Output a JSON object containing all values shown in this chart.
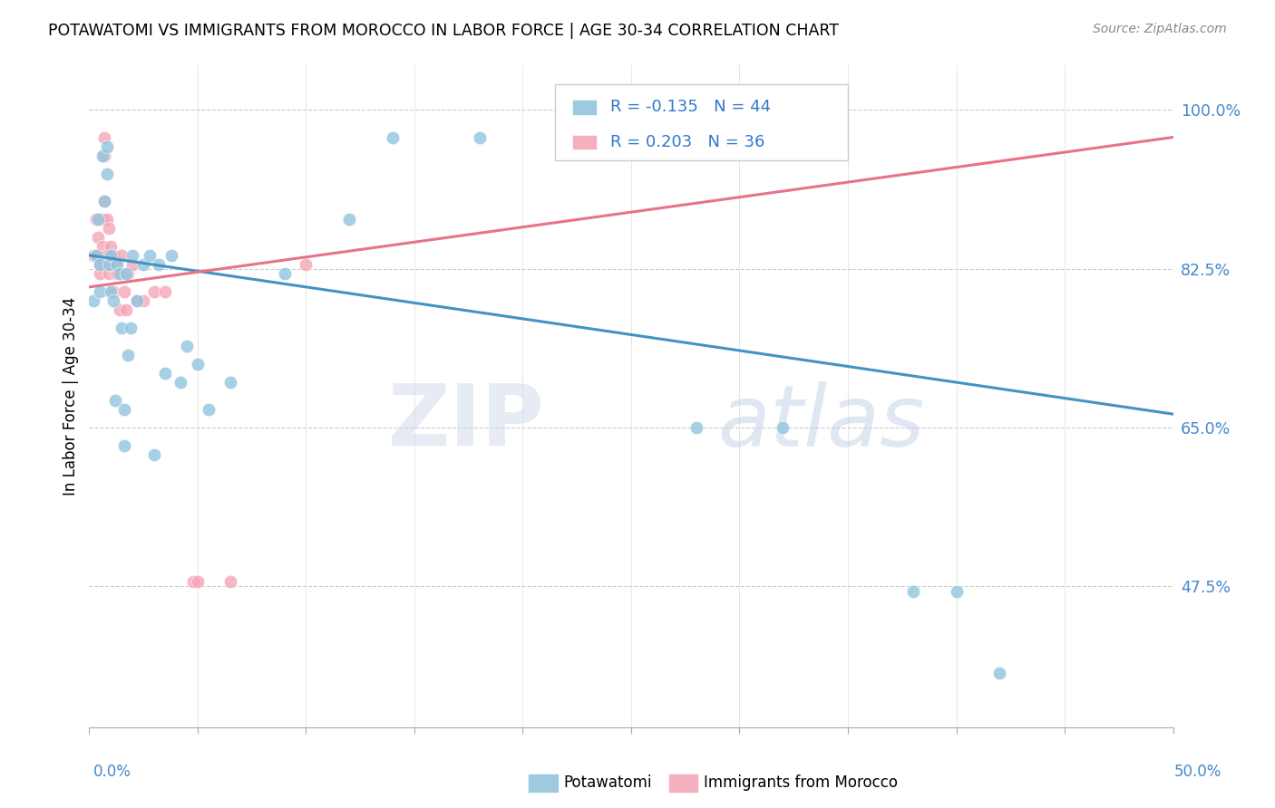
{
  "title": "POTAWATOMI VS IMMIGRANTS FROM MOROCCO IN LABOR FORCE | AGE 30-34 CORRELATION CHART",
  "source": "Source: ZipAtlas.com",
  "ylabel": "In Labor Force | Age 30-34",
  "ytick_labels": [
    "100.0%",
    "82.5%",
    "65.0%",
    "47.5%"
  ],
  "ytick_values": [
    1.0,
    0.825,
    0.65,
    0.475
  ],
  "xlim": [
    0.0,
    0.5
  ],
  "ylim": [
    0.32,
    1.05
  ],
  "legend_blue_r": "-0.135",
  "legend_blue_n": "44",
  "legend_pink_r": "0.203",
  "legend_pink_n": "36",
  "blue_color": "#92c5de",
  "pink_color": "#f4a6b8",
  "blue_line_color": "#4393c3",
  "pink_line_color": "#e8728a",
  "watermark_zip": "ZIP",
  "watermark_atlas": "atlas",
  "blue_x": [
    0.002,
    0.003,
    0.004,
    0.005,
    0.005,
    0.006,
    0.007,
    0.008,
    0.008,
    0.009,
    0.01,
    0.01,
    0.011,
    0.012,
    0.013,
    0.014,
    0.015,
    0.016,
    0.016,
    0.017,
    0.018,
    0.019,
    0.02,
    0.022,
    0.025,
    0.028,
    0.03,
    0.032,
    0.035,
    0.038,
    0.042,
    0.045,
    0.05,
    0.055,
    0.065,
    0.09,
    0.12,
    0.14,
    0.18,
    0.28,
    0.32,
    0.38,
    0.4,
    0.42
  ],
  "blue_y": [
    0.79,
    0.84,
    0.88,
    0.83,
    0.8,
    0.95,
    0.9,
    0.96,
    0.93,
    0.83,
    0.84,
    0.8,
    0.79,
    0.68,
    0.83,
    0.82,
    0.76,
    0.67,
    0.63,
    0.82,
    0.73,
    0.76,
    0.84,
    0.79,
    0.83,
    0.84,
    0.62,
    0.83,
    0.71,
    0.84,
    0.7,
    0.74,
    0.72,
    0.67,
    0.7,
    0.82,
    0.88,
    0.97,
    0.97,
    0.65,
    0.65,
    0.47,
    0.47,
    0.38
  ],
  "pink_x": [
    0.002,
    0.003,
    0.003,
    0.004,
    0.005,
    0.005,
    0.006,
    0.006,
    0.007,
    0.007,
    0.007,
    0.008,
    0.008,
    0.009,
    0.009,
    0.01,
    0.01,
    0.011,
    0.011,
    0.012,
    0.013,
    0.014,
    0.015,
    0.016,
    0.017,
    0.018,
    0.02,
    0.022,
    0.025,
    0.03,
    0.035,
    0.048,
    0.05,
    0.065,
    0.1,
    0.32
  ],
  "pink_y": [
    0.84,
    0.88,
    0.84,
    0.86,
    0.83,
    0.82,
    0.88,
    0.85,
    0.9,
    0.95,
    0.97,
    0.88,
    0.84,
    0.87,
    0.82,
    0.83,
    0.85,
    0.84,
    0.8,
    0.83,
    0.82,
    0.78,
    0.84,
    0.8,
    0.78,
    0.82,
    0.83,
    0.79,
    0.79,
    0.8,
    0.8,
    0.48,
    0.48,
    0.48,
    0.83,
    0.97
  ],
  "blue_trend": [
    0.84,
    0.665
  ],
  "pink_trend": [
    0.805,
    0.97
  ],
  "xtick_positions": [
    0.0,
    0.05,
    0.1,
    0.15,
    0.2,
    0.25,
    0.3,
    0.35,
    0.4,
    0.45,
    0.5
  ]
}
